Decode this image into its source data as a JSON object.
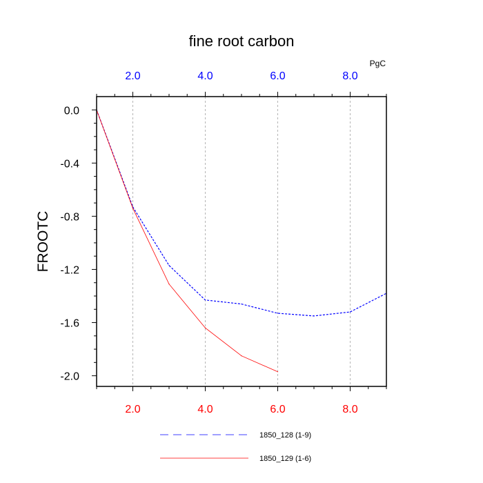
{
  "chart_data": {
    "type": "line",
    "title": "fine root carbon",
    "ylabel": "FROOTC",
    "unit_label": "PgC",
    "xlim": [
      1,
      9
    ],
    "ylim": [
      -2.08,
      0.1
    ],
    "x_ticks": [
      2.0,
      4.0,
      6.0,
      8.0
    ],
    "x_tick_labels": [
      "2.0",
      "4.0",
      "6.0",
      "8.0"
    ],
    "y_ticks": [
      0.0,
      -0.4,
      -0.8,
      -1.2,
      -1.6,
      -2.0
    ],
    "y_tick_labels": [
      "0.0",
      "-0.4",
      "-0.8",
      "-1.2",
      "-1.6",
      "-2.0"
    ],
    "top_axis_color": "#0000ff",
    "bottom_axis_color": "#ff0000",
    "grid": "vertical dotted at major x ticks",
    "legend_position": "bottom",
    "series": [
      {
        "name": "1850_128 (1-9)",
        "color": "#0000ff",
        "dash": "dashed",
        "x": [
          1,
          2,
          3,
          4,
          5,
          6,
          7,
          8,
          9
        ],
        "y": [
          0.0,
          -0.73,
          -1.17,
          -1.43,
          -1.46,
          -1.53,
          -1.55,
          -1.52,
          -1.38
        ]
      },
      {
        "name": "1850_129 (1-6)",
        "color": "#ff0000",
        "dash": "solid",
        "x": [
          1,
          2,
          3,
          4,
          5,
          6
        ],
        "y": [
          0.0,
          -0.74,
          -1.31,
          -1.64,
          -1.85,
          -1.97
        ]
      }
    ]
  }
}
